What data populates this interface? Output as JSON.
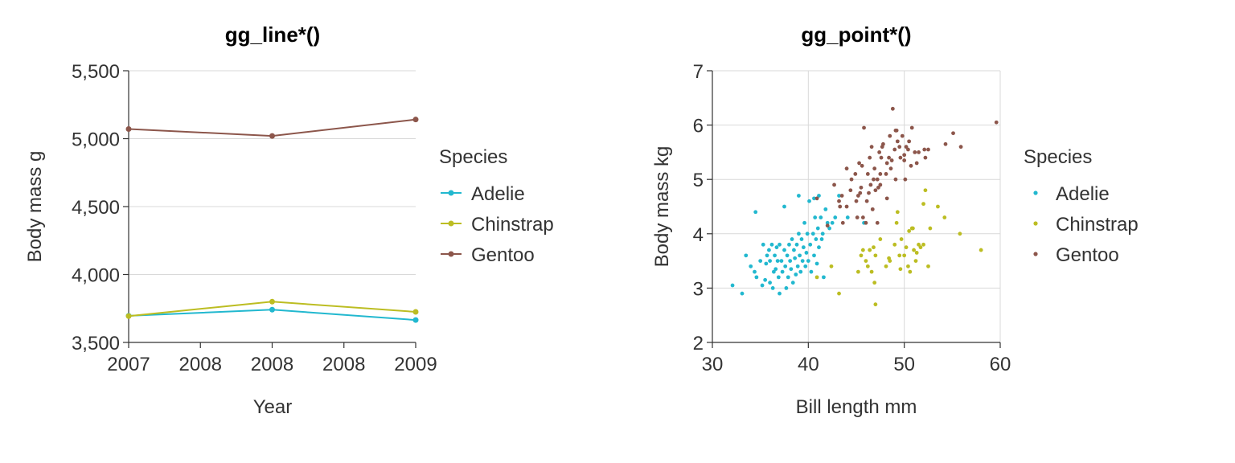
{
  "colors": {
    "Adelie": "#22b8cf",
    "Chinstrap": "#bcbd22",
    "Gentoo": "#8c564b"
  },
  "chart_data": [
    {
      "type": "line",
      "title": "gg_line*()",
      "xlabel": "Year",
      "ylabel": "Body mass g",
      "xlim": [
        2007,
        2009
      ],
      "ylim": [
        3500,
        5500
      ],
      "x_ticks": [
        {
          "value": 2007,
          "label": "2007"
        },
        {
          "value": 2007.5,
          "label": "2008"
        },
        {
          "value": 2008,
          "label": "2008"
        },
        {
          "value": 2008.5,
          "label": "2008"
        },
        {
          "value": 2009,
          "label": "2009"
        }
      ],
      "y_ticks": [
        {
          "value": 3500,
          "label": "3,500"
        },
        {
          "value": 4000,
          "label": "4,000"
        },
        {
          "value": 4500,
          "label": "4,500"
        },
        {
          "value": 5000,
          "label": "5,000"
        },
        {
          "value": 5500,
          "label": "5,500"
        }
      ],
      "legend_title": "Species",
      "legend_position": "right",
      "x": [
        2007,
        2008,
        2009
      ],
      "series": [
        {
          "name": "Adelie",
          "values": [
            3696,
            3741,
            3665
          ]
        },
        {
          "name": "Chinstrap",
          "values": [
            3694,
            3800,
            3725
          ]
        },
        {
          "name": "Gentoo",
          "values": [
            5071,
            5020,
            5141
          ]
        }
      ]
    },
    {
      "type": "scatter",
      "title": "gg_point*()",
      "xlabel": "Bill length mm",
      "ylabel": "Body mass kg",
      "xlim": [
        30,
        60
      ],
      "ylim": [
        2,
        7
      ],
      "x_ticks": [
        {
          "value": 30,
          "label": "30"
        },
        {
          "value": 40,
          "label": "40"
        },
        {
          "value": 50,
          "label": "50"
        },
        {
          "value": 60,
          "label": "60"
        }
      ],
      "y_ticks": [
        {
          "value": 2,
          "label": "2"
        },
        {
          "value": 3,
          "label": "3"
        },
        {
          "value": 4,
          "label": "4"
        },
        {
          "value": 5,
          "label": "5"
        },
        {
          "value": 6,
          "label": "6"
        },
        {
          "value": 7,
          "label": "7"
        }
      ],
      "legend_title": "Species",
      "legend_position": "right",
      "series": [
        {
          "name": "Adelie",
          "points": [
            [
              32.1,
              3.05
            ],
            [
              33.1,
              2.9
            ],
            [
              33.5,
              3.6
            ],
            [
              34.0,
              3.4
            ],
            [
              34.4,
              3.3
            ],
            [
              34.6,
              3.2
            ],
            [
              34.5,
              4.4
            ],
            [
              35.0,
              3.5
            ],
            [
              35.2,
              3.05
            ],
            [
              35.3,
              3.8
            ],
            [
              35.5,
              3.15
            ],
            [
              35.6,
              3.45
            ],
            [
              35.7,
              3.6
            ],
            [
              35.9,
              3.7
            ],
            [
              36.0,
              3.1
            ],
            [
              36.0,
              3.5
            ],
            [
              36.2,
              3.8
            ],
            [
              36.3,
              3.0
            ],
            [
              36.4,
              3.3
            ],
            [
              36.5,
              3.6
            ],
            [
              36.6,
              3.35
            ],
            [
              36.7,
              3.75
            ],
            [
              36.8,
              3.5
            ],
            [
              36.9,
              3.2
            ],
            [
              37.0,
              3.8
            ],
            [
              37.0,
              2.9
            ],
            [
              37.2,
              3.5
            ],
            [
              37.3,
              3.3
            ],
            [
              37.5,
              3.7
            ],
            [
              37.6,
              3.4
            ],
            [
              37.7,
              3.0
            ],
            [
              37.8,
              3.6
            ],
            [
              37.9,
              3.2
            ],
            [
              38.0,
              3.8
            ],
            [
              38.1,
              3.5
            ],
            [
              38.2,
              3.35
            ],
            [
              38.3,
              3.9
            ],
            [
              38.4,
              3.1
            ],
            [
              38.5,
              3.7
            ],
            [
              38.6,
              3.55
            ],
            [
              38.7,
              3.25
            ],
            [
              38.8,
              3.8
            ],
            [
              38.9,
              3.4
            ],
            [
              39.0,
              4.0
            ],
            [
              39.1,
              3.6
            ],
            [
              39.2,
              3.3
            ],
            [
              39.3,
              3.9
            ],
            [
              39.4,
              3.5
            ],
            [
              39.5,
              3.75
            ],
            [
              39.6,
              4.2
            ],
            [
              39.7,
              3.4
            ],
            [
              39.8,
              3.65
            ],
            [
              39.9,
              4.0
            ],
            [
              40.0,
              3.5
            ],
            [
              40.1,
              4.6
            ],
            [
              40.2,
              3.8
            ],
            [
              40.3,
              3.3
            ],
            [
              40.5,
              4.0
            ],
            [
              40.6,
              3.6
            ],
            [
              40.7,
              4.3
            ],
            [
              40.8,
              3.9
            ],
            [
              40.9,
              3.45
            ],
            [
              41.0,
              4.1
            ],
            [
              41.1,
              3.75
            ],
            [
              41.3,
              4.3
            ],
            [
              41.4,
              3.9
            ],
            [
              41.5,
              4.0
            ],
            [
              41.6,
              3.2
            ],
            [
              41.8,
              4.45
            ],
            [
              42.0,
              4.2
            ],
            [
              42.2,
              4.1
            ],
            [
              42.5,
              4.2
            ],
            [
              42.8,
              4.3
            ],
            [
              43.2,
              4.7
            ],
            [
              44.1,
              4.3
            ],
            [
              45.8,
              4.2
            ],
            [
              37.5,
              4.5
            ],
            [
              39.0,
              4.7
            ],
            [
              41.1,
              4.7
            ],
            [
              40.6,
              4.65
            ]
          ]
        },
        {
          "name": "Chinstrap",
          "points": [
            [
              40.9,
              3.2
            ],
            [
              42.4,
              3.4
            ],
            [
              43.2,
              2.9
            ],
            [
              45.2,
              3.3
            ],
            [
              45.5,
              3.6
            ],
            [
              45.7,
              3.7
            ],
            [
              46.0,
              3.5
            ],
            [
              46.2,
              3.4
            ],
            [
              46.4,
              3.7
            ],
            [
              46.6,
              3.3
            ],
            [
              46.8,
              3.75
            ],
            [
              47.0,
              3.6
            ],
            [
              47.0,
              2.7
            ],
            [
              47.5,
              3.9
            ],
            [
              48.1,
              3.4
            ],
            [
              48.5,
              3.5
            ],
            [
              49.0,
              3.8
            ],
            [
              49.2,
              4.2
            ],
            [
              49.3,
              4.4
            ],
            [
              49.5,
              3.6
            ],
            [
              49.7,
              3.9
            ],
            [
              50.0,
              3.6
            ],
            [
              50.2,
              3.75
            ],
            [
              50.4,
              3.4
            ],
            [
              50.5,
              4.05
            ],
            [
              50.6,
              3.3
            ],
            [
              50.8,
              4.1
            ],
            [
              51.0,
              3.7
            ],
            [
              51.2,
              3.5
            ],
            [
              51.3,
              3.65
            ],
            [
              51.5,
              3.8
            ],
            [
              51.7,
              3.75
            ],
            [
              52.0,
              3.8
            ],
            [
              52.2,
              4.8
            ],
            [
              52.5,
              3.4
            ],
            [
              52.7,
              4.1
            ],
            [
              53.5,
              4.5
            ],
            [
              54.2,
              4.3
            ],
            [
              55.8,
              4.0
            ],
            [
              58.0,
              3.7
            ],
            [
              52.0,
              4.55
            ],
            [
              49.6,
              3.35
            ],
            [
              50.9,
              4.1
            ],
            [
              46.9,
              3.1
            ],
            [
              48.4,
              3.55
            ]
          ]
        },
        {
          "name": "Gentoo",
          "points": [
            [
              40.9,
              4.65
            ],
            [
              42.0,
              4.15
            ],
            [
              42.7,
              4.9
            ],
            [
              43.2,
              4.6
            ],
            [
              43.3,
              4.5
            ],
            [
              43.5,
              4.7
            ],
            [
              43.6,
              4.2
            ],
            [
              44.0,
              4.5
            ],
            [
              44.4,
              4.8
            ],
            [
              44.5,
              5.0
            ],
            [
              44.9,
              5.1
            ],
            [
              45.1,
              4.3
            ],
            [
              45.2,
              4.7
            ],
            [
              45.3,
              5.3
            ],
            [
              45.4,
              4.75
            ],
            [
              45.5,
              4.85
            ],
            [
              45.6,
              5.25
            ],
            [
              45.7,
              4.3
            ],
            [
              45.8,
              5.95
            ],
            [
              46.1,
              4.6
            ],
            [
              46.2,
              5.1
            ],
            [
              46.3,
              4.75
            ],
            [
              46.4,
              5.4
            ],
            [
              46.5,
              4.9
            ],
            [
              46.6,
              5.6
            ],
            [
              46.7,
              4.45
            ],
            [
              46.8,
              5.0
            ],
            [
              46.9,
              5.2
            ],
            [
              47.0,
              4.8
            ],
            [
              47.2,
              5.0
            ],
            [
              47.3,
              4.85
            ],
            [
              47.4,
              5.5
            ],
            [
              47.5,
              4.9
            ],
            [
              47.6,
              5.4
            ],
            [
              47.7,
              5.6
            ],
            [
              47.8,
              5.65
            ],
            [
              48.1,
              5.1
            ],
            [
              48.2,
              5.3
            ],
            [
              48.4,
              5.4
            ],
            [
              48.5,
              5.8
            ],
            [
              48.6,
              5.2
            ],
            [
              48.7,
              5.35
            ],
            [
              48.8,
              6.3
            ],
            [
              49.0,
              5.55
            ],
            [
              49.1,
              5.0
            ],
            [
              49.2,
              5.9
            ],
            [
              49.3,
              5.7
            ],
            [
              49.5,
              5.6
            ],
            [
              49.6,
              5.4
            ],
            [
              49.8,
              5.8
            ],
            [
              50.0,
              5.35
            ],
            [
              50.1,
              5.0
            ],
            [
              50.2,
              5.6
            ],
            [
              50.4,
              5.55
            ],
            [
              50.5,
              5.7
            ],
            [
              50.7,
              5.25
            ],
            [
              50.8,
              5.95
            ],
            [
              51.1,
              5.5
            ],
            [
              51.3,
              5.3
            ],
            [
              51.5,
              5.5
            ],
            [
              52.1,
              5.55
            ],
            [
              52.2,
              5.4
            ],
            [
              52.5,
              5.55
            ],
            [
              54.3,
              5.65
            ],
            [
              55.1,
              5.85
            ],
            [
              55.9,
              5.6
            ],
            [
              59.6,
              6.05
            ],
            [
              47.2,
              4.2
            ],
            [
              45.0,
              4.6
            ],
            [
              48.2,
              4.65
            ],
            [
              46.0,
              4.2
            ],
            [
              44.0,
              5.2
            ],
            [
              49.1,
              5.9
            ],
            [
              50.0,
              5.45
            ],
            [
              47.5,
              5.1
            ]
          ]
        }
      ]
    }
  ]
}
